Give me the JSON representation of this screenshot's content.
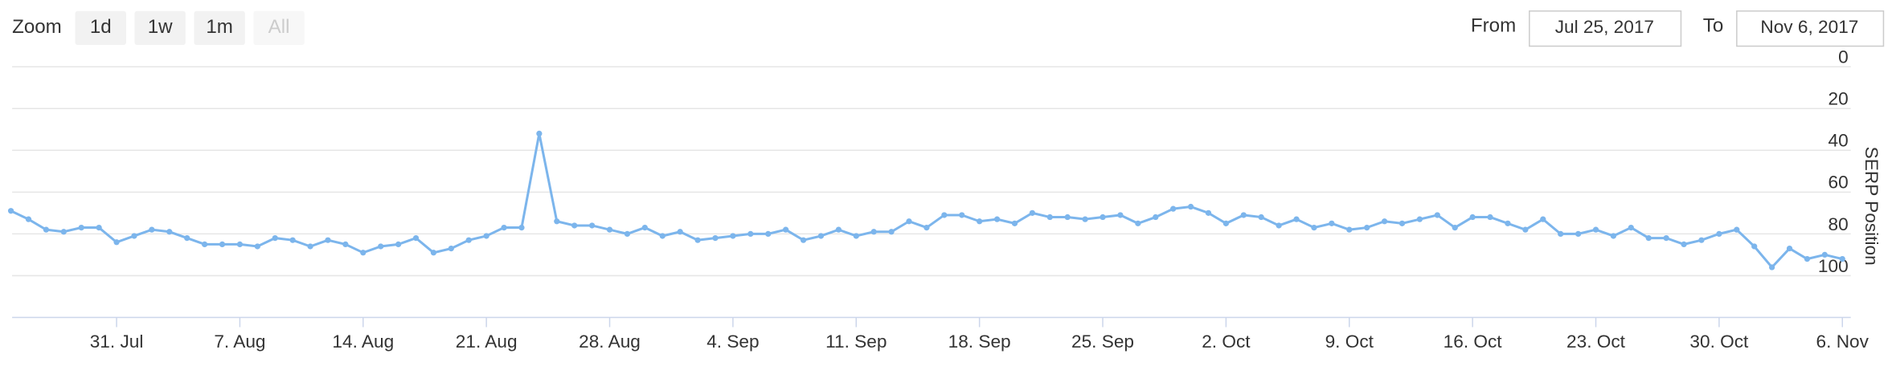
{
  "range_selector": {
    "zoom_label": "Zoom",
    "buttons": [
      "1d",
      "1w",
      "1m",
      "All"
    ],
    "disabled_button": "All",
    "from_label": "From",
    "from_value": "Jul 25, 2017",
    "to_label": "To",
    "to_value": "Nov 6, 2017"
  },
  "chart_data": {
    "type": "line",
    "y_label": "SERP Position",
    "reversed": true,
    "grid": true,
    "color": "#7cb5ec",
    "markers": true,
    "ylim": [
      0,
      120
    ],
    "yticks": [
      0,
      20,
      40,
      60,
      80,
      100
    ],
    "categories": [
      null,
      null,
      null,
      null,
      null,
      null,
      "31. Jul",
      null,
      null,
      null,
      null,
      null,
      null,
      "7. Aug",
      null,
      null,
      null,
      null,
      null,
      null,
      "14. Aug",
      null,
      null,
      null,
      null,
      null,
      null,
      "21. Aug",
      null,
      null,
      null,
      null,
      null,
      null,
      "28. Aug",
      null,
      null,
      null,
      null,
      null,
      null,
      "4. Sep",
      null,
      null,
      null,
      null,
      null,
      null,
      "11. Sep",
      null,
      null,
      null,
      null,
      null,
      null,
      "18. Sep",
      null,
      null,
      null,
      null,
      null,
      null,
      "25. Sep",
      null,
      null,
      null,
      null,
      null,
      null,
      "2. Oct",
      null,
      null,
      null,
      null,
      null,
      null,
      "9. Oct",
      null,
      null,
      null,
      null,
      null,
      null,
      "16. Oct",
      null,
      null,
      null,
      null,
      null,
      null,
      "23. Oct",
      null,
      null,
      null,
      null,
      null,
      null,
      "30. Oct",
      null,
      null,
      null,
      null,
      null,
      null,
      "6. Nov"
    ],
    "values": [
      69,
      73,
      78,
      79,
      77,
      77,
      84,
      81,
      78,
      79,
      82,
      85,
      85,
      85,
      86,
      82,
      83,
      86,
      83,
      85,
      89,
      86,
      85,
      82,
      89,
      87,
      83,
      81,
      77,
      77,
      32,
      74,
      76,
      76,
      78,
      80,
      77,
      81,
      79,
      83,
      82,
      81,
      80,
      80,
      78,
      83,
      81,
      78,
      81,
      79,
      79,
      74,
      77,
      71,
      71,
      74,
      73,
      75,
      70,
      72,
      72,
      73,
      72,
      71,
      75,
      72,
      68,
      67,
      70,
      75,
      71,
      72,
      76,
      73,
      77,
      75,
      78,
      77,
      74,
      75,
      73,
      71,
      77,
      72,
      72,
      75,
      78,
      73,
      80,
      80,
      78,
      81,
      77,
      82,
      82,
      85,
      83,
      80,
      78,
      86,
      96,
      87,
      92,
      90,
      92
    ]
  }
}
